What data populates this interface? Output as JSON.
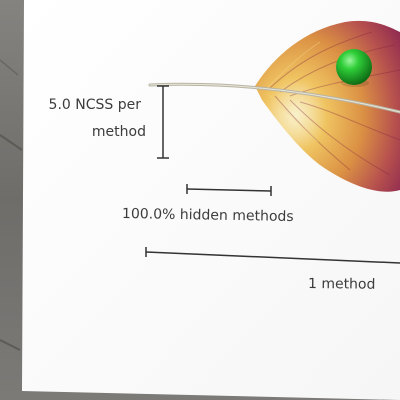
{
  "legend": {
    "ncss_label_line1": "5.0 NCSS per",
    "ncss_label_line2": "method",
    "hidden_label": "100.0% hidden methods",
    "method_label": "1 method"
  },
  "colors": {
    "feather_base": "#e8a23a",
    "feather_tip": "#9b2a4a",
    "indicator": "#1fb52a",
    "paper": "#ffffff",
    "ink": "#3c3c3c",
    "background": "#7d7b78"
  },
  "icons": {
    "indicator": "green-sphere-icon",
    "feather": "feather-glyph"
  }
}
